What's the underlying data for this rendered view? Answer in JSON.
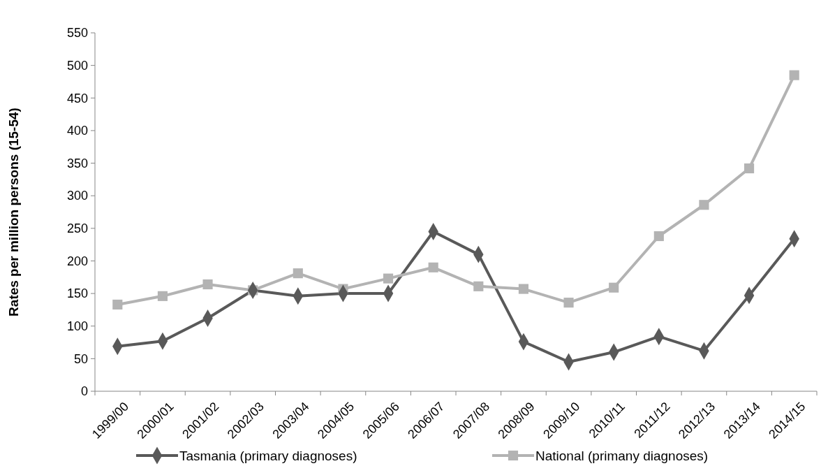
{
  "chart_data": {
    "type": "line",
    "ylabel": "Rates per million persons (15-54)",
    "categories": [
      "1999/00",
      "2000/01",
      "2001/02",
      "2002/03",
      "2003/04",
      "2004/05",
      "2005/06",
      "2006/07",
      "2007/08",
      "2008/09",
      "2009/10",
      "2010/11",
      "2011/12",
      "2012/13",
      "2013/14",
      "2014/15"
    ],
    "series": [
      {
        "name": "Tasmania (primary diagnoses)",
        "color": "#595959",
        "marker": "diamond",
        "values": [
          69,
          77,
          112,
          155,
          146,
          150,
          150,
          245,
          210,
          76,
          45,
          60,
          84,
          62,
          147,
          234
        ]
      },
      {
        "name": "National (primany diagnoses)",
        "color": "#b3b3b3",
        "marker": "square",
        "values": [
          133,
          146,
          164,
          155,
          181,
          157,
          173,
          190,
          161,
          157,
          136,
          159,
          238,
          286,
          342,
          485
        ]
      }
    ],
    "ylim": [
      0,
      550
    ],
    "yticks": [
      0,
      50,
      100,
      150,
      200,
      250,
      300,
      350,
      400,
      450,
      500,
      550
    ],
    "grid": false,
    "legend": "bottom",
    "line_style": "solid"
  }
}
